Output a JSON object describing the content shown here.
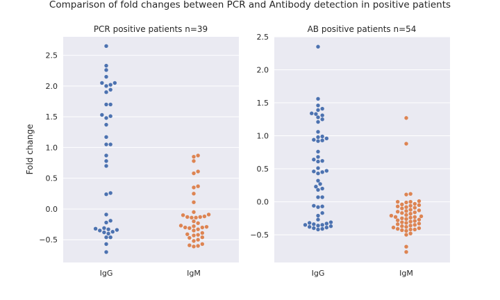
{
  "figure": {
    "suptitle": "Comparison of fold changes between PCR and Antibody detection in positive patients"
  },
  "chart_data": [
    {
      "type": "scatter",
      "style": "swarm",
      "title": "PCR positive patients n=39",
      "xlabel": "",
      "ylabel": "Fold change",
      "categories": [
        "IgG",
        "IgM"
      ],
      "yticks": [
        "2.5",
        "2.0",
        "1.5",
        "1.0",
        "0.5",
        "0.0",
        "−0.5"
      ],
      "tick_values": [
        2.5,
        2.0,
        1.5,
        1.0,
        0.5,
        0.0,
        -0.5
      ],
      "ylim": [
        -0.87,
        2.8
      ],
      "grid": true,
      "colors": {
        "IgG": "#4c72b0",
        "IgM": "#dd8452",
        "background": "#eaeaf2"
      },
      "series": [
        {
          "name": "IgG",
          "values": [
            2.65,
            2.33,
            2.26,
            2.15,
            2.05,
            2.05,
            2.02,
            2.0,
            1.94,
            1.9,
            1.7,
            1.7,
            1.53,
            1.51,
            1.48,
            1.37,
            1.17,
            1.05,
            1.05,
            0.87,
            0.78,
            0.7,
            0.26,
            0.24,
            -0.09,
            -0.19,
            -0.22,
            -0.31,
            -0.32,
            -0.33,
            -0.34,
            -0.35,
            -0.37,
            -0.38,
            -0.4,
            -0.46,
            -0.46,
            -0.57,
            -0.7
          ]
        },
        {
          "name": "IgM",
          "values": [
            0.87,
            0.85,
            0.78,
            0.61,
            0.58,
            0.37,
            0.35,
            0.25,
            0.11,
            -0.05,
            -0.09,
            -0.1,
            -0.12,
            -0.13,
            -0.13,
            -0.14,
            -0.14,
            -0.2,
            -0.23,
            -0.27,
            -0.28,
            -0.29,
            -0.3,
            -0.3,
            -0.31,
            -0.33,
            -0.35,
            -0.39,
            -0.41,
            -0.42,
            -0.43,
            -0.46,
            -0.47,
            -0.5,
            -0.52,
            -0.57,
            -0.59,
            -0.6,
            -0.61
          ]
        }
      ]
    },
    {
      "type": "scatter",
      "style": "swarm",
      "title": "AB positive patients n=54",
      "xlabel": "",
      "ylabel": "",
      "categories": [
        "IgG",
        "IgM"
      ],
      "yticks": [
        "2.5",
        "2.0",
        "1.5",
        "1.0",
        "0.5",
        "0.0",
        "−0.5"
      ],
      "tick_values": [
        2.5,
        2.0,
        1.5,
        1.0,
        0.5,
        0.0,
        -0.5
      ],
      "ylim": [
        -0.92,
        2.5
      ],
      "grid": true,
      "colors": {
        "IgG": "#4c72b0",
        "IgM": "#dd8452",
        "background": "#eaeaf2"
      },
      "series": [
        {
          "name": "IgG",
          "values": [
            2.35,
            1.56,
            1.46,
            1.41,
            1.39,
            1.34,
            1.33,
            1.31,
            1.28,
            1.25,
            1.21,
            1.06,
            0.99,
            0.98,
            0.96,
            0.94,
            0.93,
            0.92,
            0.76,
            0.68,
            0.64,
            0.62,
            0.61,
            0.51,
            0.47,
            0.46,
            0.45,
            0.43,
            0.32,
            0.27,
            0.23,
            0.2,
            0.18,
            0.07,
            0.07,
            -0.06,
            -0.07,
            -0.08,
            -0.17,
            -0.21,
            -0.27,
            -0.31,
            -0.32,
            -0.33,
            -0.34,
            -0.35,
            -0.35,
            -0.36,
            -0.37,
            -0.38,
            -0.39,
            -0.4,
            -0.41,
            -0.42
          ]
        },
        {
          "name": "IgM",
          "values": [
            1.27,
            0.88,
            0.12,
            0.11,
            0.01,
            0.0,
            0.0,
            -0.01,
            -0.03,
            -0.04,
            -0.05,
            -0.06,
            -0.07,
            -0.08,
            -0.09,
            -0.1,
            -0.12,
            -0.13,
            -0.14,
            -0.15,
            -0.16,
            -0.17,
            -0.18,
            -0.2,
            -0.21,
            -0.22,
            -0.23,
            -0.23,
            -0.24,
            -0.25,
            -0.26,
            -0.27,
            -0.28,
            -0.29,
            -0.3,
            -0.31,
            -0.32,
            -0.33,
            -0.34,
            -0.35,
            -0.36,
            -0.37,
            -0.38,
            -0.39,
            -0.4,
            -0.41,
            -0.42,
            -0.42,
            -0.43,
            -0.44,
            -0.48,
            -0.5,
            -0.68,
            -0.76
          ]
        }
      ]
    }
  ]
}
